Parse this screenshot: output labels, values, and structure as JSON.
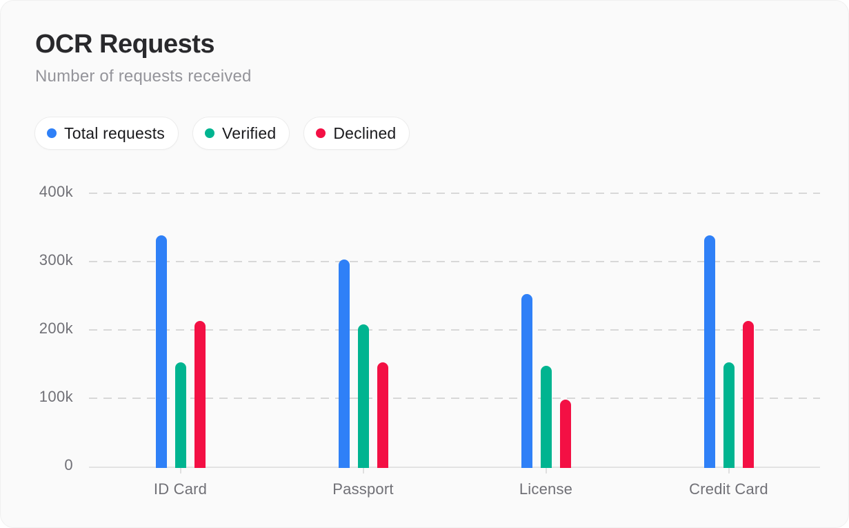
{
  "header": {
    "title": "OCR Requests",
    "subtitle": "Number of requests received"
  },
  "colors": {
    "card_background": "#fafafa",
    "page_background": "#ffffff",
    "gridline": "#d8d8d8",
    "axis_line": "#e2e2e2",
    "ytick_label": "#707076",
    "category_label": "#707076",
    "title": "#29292c",
    "subtitle": "#94949a",
    "legend_text": "#19191c",
    "total_requests": "#2f80f7",
    "verified": "#00b490",
    "declined": "#f31044"
  },
  "chart_data": {
    "type": "bar",
    "title": "OCR Requests",
    "subtitle": "Number of requests received",
    "categories": [
      "ID Card",
      "Passport",
      "License",
      "Credit Card"
    ],
    "series": [
      {
        "name": "Total requests",
        "color": "#2f80f7",
        "values": [
          340000,
          305000,
          255000,
          340000
        ]
      },
      {
        "name": "Verified",
        "color": "#00b490",
        "values": [
          155000,
          210000,
          150000,
          155000
        ]
      },
      {
        "name": "Declined",
        "color": "#f31044",
        "values": [
          215000,
          155000,
          100000,
          215000
        ]
      }
    ],
    "ylim": [
      0,
      400000
    ],
    "yticks": [
      {
        "value": 0,
        "label": "0"
      },
      {
        "value": 100000,
        "label": "100k"
      },
      {
        "value": 200000,
        "label": "200k"
      },
      {
        "value": 300000,
        "label": "300k"
      },
      {
        "value": 400000,
        "label": "400k"
      }
    ],
    "grid": "dashed-horizontal",
    "legend_position": "top-left"
  }
}
